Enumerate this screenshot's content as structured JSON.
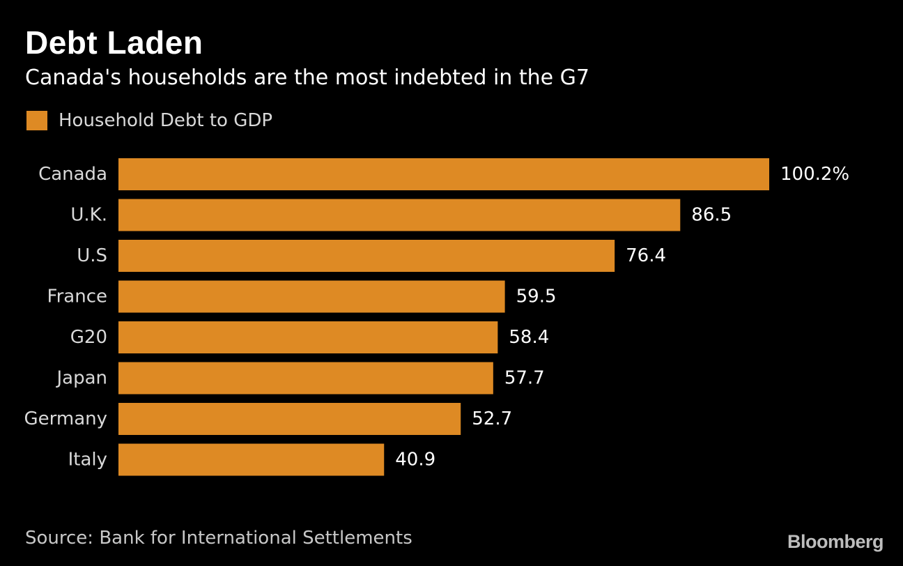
{
  "header": {
    "title": "Debt Laden",
    "subtitle": "Canada's households are the most indebted in the G7"
  },
  "legend": {
    "label": "Household Debt to GDP",
    "color": "#de8a24"
  },
  "footer": {
    "source": "Source: Bank for International Settlements",
    "brand": "Bloomberg"
  },
  "chart_data": {
    "type": "bar",
    "orientation": "horizontal",
    "categories": [
      "Canada",
      "U.K.",
      "U.S",
      "France",
      "G20",
      "Japan",
      "Germany",
      "Italy"
    ],
    "series": [
      {
        "name": "Household Debt to GDP",
        "values": [
          100.2,
          86.5,
          76.4,
          59.5,
          58.4,
          57.7,
          52.7,
          40.9
        ],
        "labels": [
          "100.2%",
          "86.5",
          "76.4",
          "59.5",
          "58.4",
          "57.7",
          "52.7",
          "40.9"
        ],
        "color": "#de8a24"
      }
    ],
    "xlim": [
      0,
      100.2
    ],
    "title": "Debt Laden",
    "subtitle": "Canada's households are the most indebted in the G7",
    "xlabel": "",
    "ylabel": "",
    "grid": false,
    "legend_position": "top-left"
  }
}
